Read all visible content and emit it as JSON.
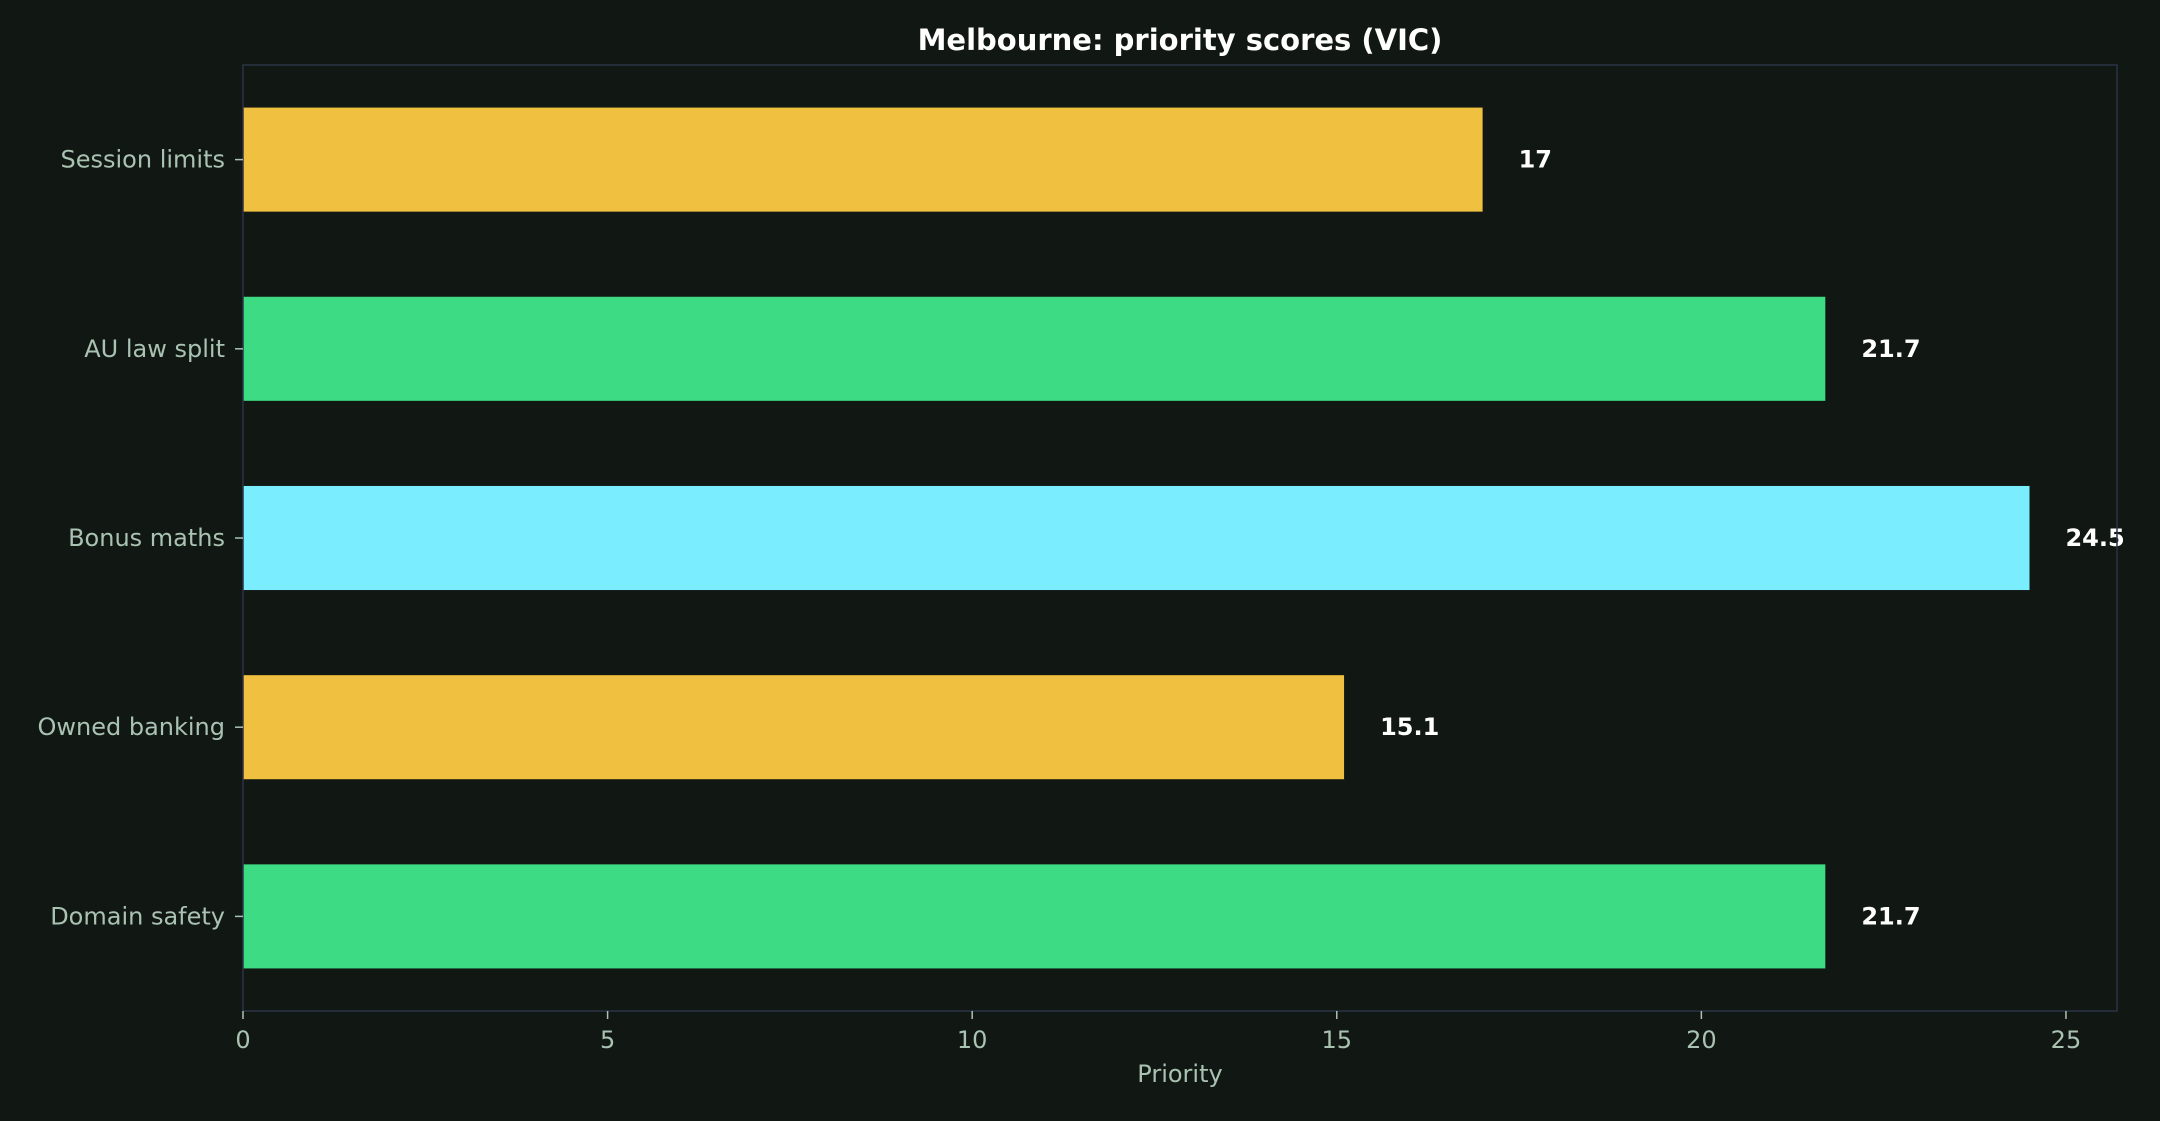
{
  "chart_data": {
    "type": "bar",
    "orientation": "horizontal",
    "title": "Melbourne: priority scores (VIC)",
    "xlabel": "Priority",
    "ylabel": "",
    "categories": [
      "Session limits",
      "AU law split",
      "Bonus maths",
      "Owned banking",
      "Domain safety"
    ],
    "values": [
      17,
      21.7,
      24.5,
      15.1,
      21.7
    ],
    "value_labels": [
      "17",
      "21.7",
      "24.5",
      "15.1",
      "21.7"
    ],
    "bar_colors": [
      "#f0c040",
      "#3ddc84",
      "#7aeeff",
      "#f0c040",
      "#3ddc84"
    ],
    "xlim": [
      0,
      25.7
    ],
    "xticks": [
      0,
      5,
      10,
      15,
      20,
      25
    ],
    "xtick_labels": [
      "0",
      "5",
      "10",
      "15",
      "20",
      "25"
    ],
    "grid": false,
    "legend": "none"
  },
  "theme": {
    "background": "#111813",
    "axes_border": "#2a3346",
    "label_color": "#a9c2b2",
    "title_color": "#ffffff",
    "value_label_color": "#ffffff"
  }
}
